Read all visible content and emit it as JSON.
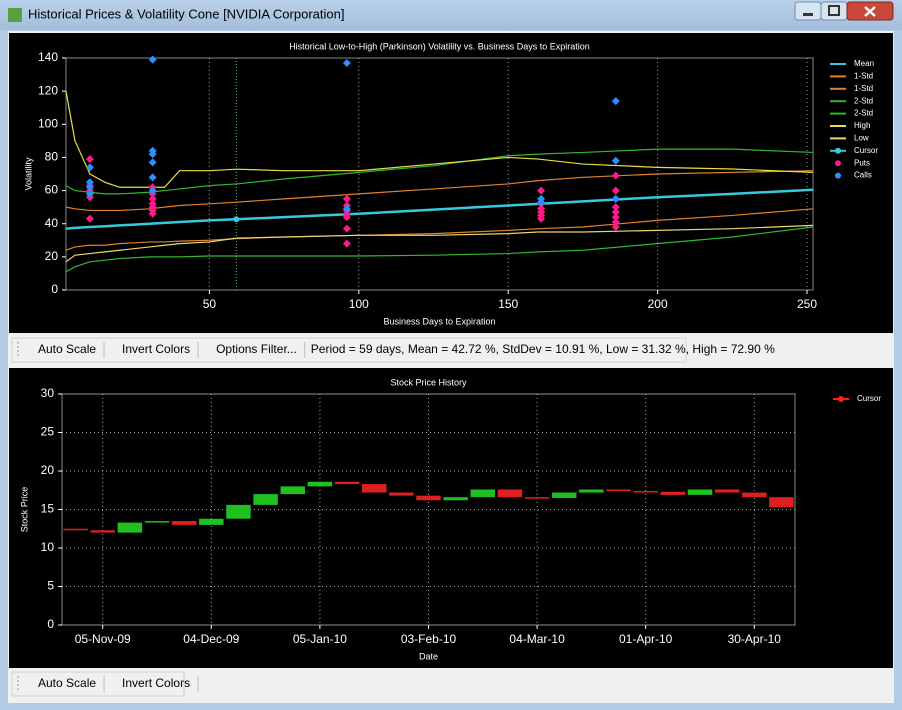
{
  "window": {
    "title": "Historical Prices & Volatility Cone [NVIDIA Corporation]"
  },
  "toolbar": {
    "buttons": [
      "Auto Scale",
      "Invert Colors",
      "Options Filter..."
    ],
    "status": "Period = 59 days, Mean = 42.72 %, StdDev = 10.91 %, Low = 31.32 %, High = 72.90 %"
  },
  "toolbar2": {
    "buttons": [
      "Auto Scale",
      "Invert Colors"
    ]
  },
  "chart_data": [
    {
      "type": "line",
      "title": "Historical Low-to-High (Parkinson) Volatility vs. Business Days to Expiration",
      "xlabel": "Business Days to Expiration",
      "ylabel": "Volatility",
      "xlim": [
        2,
        252
      ],
      "xticks": [
        50,
        100,
        150,
        200,
        250
      ],
      "ylim": [
        0,
        140
      ],
      "yticks": [
        0,
        20,
        40,
        60,
        80,
        100,
        120,
        140
      ],
      "grid_x": true,
      "grid_y": false,
      "legend": "right",
      "x": [
        2,
        5,
        10,
        15,
        20,
        30,
        35,
        40,
        50,
        59,
        75,
        100,
        125,
        150,
        160,
        175,
        200,
        225,
        252
      ],
      "series": [
        {
          "name": "Mean",
          "color": "#38c8dc",
          "width": 2.5,
          "values": [
            37,
            37.5,
            38,
            38.5,
            39,
            40,
            40.5,
            41,
            42,
            42.7,
            44,
            46,
            48.5,
            51,
            52,
            53.5,
            56,
            58,
            60.5
          ]
        },
        {
          "name": "1-Std",
          "color": "#e08030",
          "width": 1.2,
          "values": [
            50,
            49,
            48,
            48,
            48,
            49,
            50,
            51,
            52,
            53,
            55,
            58,
            61,
            64,
            66,
            68,
            70,
            71,
            72
          ]
        },
        {
          "name": "1-Std",
          "color": "#e08030",
          "width": 1.2,
          "values": [
            24,
            26,
            27,
            27,
            28,
            29,
            29,
            29.5,
            30,
            31,
            32,
            33,
            34,
            36,
            37,
            38,
            42,
            45,
            49
          ]
        },
        {
          "name": "2-Std",
          "color": "#30b830",
          "width": 1.2,
          "values": [
            63,
            60,
            59,
            58,
            58,
            59,
            60,
            61,
            63,
            64,
            67,
            71,
            75,
            81,
            82,
            83,
            85,
            85,
            83
          ]
        },
        {
          "name": "2-Std",
          "color": "#30b830",
          "width": 1.2,
          "values": [
            11,
            14,
            17,
            18,
            19,
            20,
            20,
            20,
            20.5,
            20.5,
            20.5,
            20.5,
            21,
            22,
            23,
            24,
            28,
            32,
            38
          ]
        },
        {
          "name": "High",
          "color": "#e8e040",
          "width": 1.2,
          "values": [
            120,
            90,
            70,
            65,
            62,
            62,
            62,
            72,
            72,
            72.9,
            72,
            72,
            76,
            80,
            79,
            76,
            74,
            73,
            71
          ]
        },
        {
          "name": "Low",
          "color": "#e8d870",
          "width": 1.2,
          "values": [
            17,
            21,
            22,
            23,
            24,
            26,
            27,
            28,
            29,
            31.3,
            32,
            33,
            33,
            34,
            35,
            35,
            36,
            37,
            39
          ]
        }
      ],
      "cursor": {
        "name": "Cursor",
        "color": "#38c8dc",
        "line_color": "#70c070",
        "x": 59,
        "value": 42.72
      },
      "scatter": [
        {
          "name": "Puts",
          "color": "#ff1a8c",
          "x": [
            10,
            10,
            10,
            10,
            10,
            31,
            31,
            31,
            31,
            31,
            31,
            31,
            96,
            96,
            96,
            96,
            96,
            96,
            96,
            161,
            161,
            161,
            161,
            161,
            161,
            186,
            186,
            186,
            186,
            186,
            186,
            186,
            186
          ],
          "values": [
            79,
            63,
            60,
            56,
            43,
            62,
            58,
            55,
            52,
            50,
            48,
            46,
            55,
            51,
            48,
            46,
            44,
            37,
            28,
            60,
            52,
            49,
            47,
            45,
            43,
            69,
            60,
            55,
            50,
            47,
            44,
            41,
            38
          ]
        },
        {
          "name": "Calls",
          "color": "#2a90ff",
          "x": [
            10,
            10,
            10,
            10,
            31,
            31,
            31,
            31,
            31,
            31,
            96,
            96,
            161,
            161,
            186,
            186,
            186
          ],
          "values": [
            74,
            65,
            62,
            58,
            139,
            84,
            82,
            77,
            68,
            60,
            137,
            49,
            55,
            53,
            114,
            78,
            55
          ]
        }
      ]
    },
    {
      "type": "candlestick",
      "title": "Stock Price History",
      "xlabel": "Date",
      "ylabel": "Stock Price",
      "ylim": [
        0,
        30
      ],
      "yticks": [
        0,
        5,
        10,
        15,
        20,
        25,
        30
      ],
      "grid_x": true,
      "grid_y": true,
      "legend": "right",
      "categories": [
        null,
        "05-Nov-09",
        null,
        null,
        null,
        "04-Dec-09",
        null,
        null,
        null,
        "05-Jan-10",
        null,
        null,
        null,
        "03-Feb-10",
        null,
        null,
        null,
        "04-Mar-10",
        null,
        null,
        null,
        "01-Apr-10",
        null,
        null,
        null,
        "30-Apr-10",
        null
      ],
      "open": [
        12.5,
        12.3,
        12.0,
        13.3,
        13.5,
        13.0,
        13.8,
        15.6,
        17.0,
        18.0,
        18.6,
        18.3,
        17.2,
        16.8,
        16.2,
        16.6,
        17.6,
        16.6,
        16.5,
        17.2,
        17.6,
        17.4,
        17.3,
        16.9,
        17.6,
        17.2,
        16.6
      ],
      "close": [
        12.3,
        12.0,
        13.3,
        13.5,
        13.0,
        13.8,
        15.6,
        17.0,
        18.0,
        18.6,
        18.3,
        17.2,
        16.8,
        16.2,
        16.6,
        17.6,
        16.6,
        16.5,
        17.2,
        17.6,
        17.4,
        17.3,
        16.9,
        17.6,
        17.2,
        16.6,
        15.3
      ],
      "up_color": "#20c020",
      "down_color": "#e02020",
      "cursor": {
        "name": "Cursor",
        "color": "#ff2020"
      }
    }
  ]
}
